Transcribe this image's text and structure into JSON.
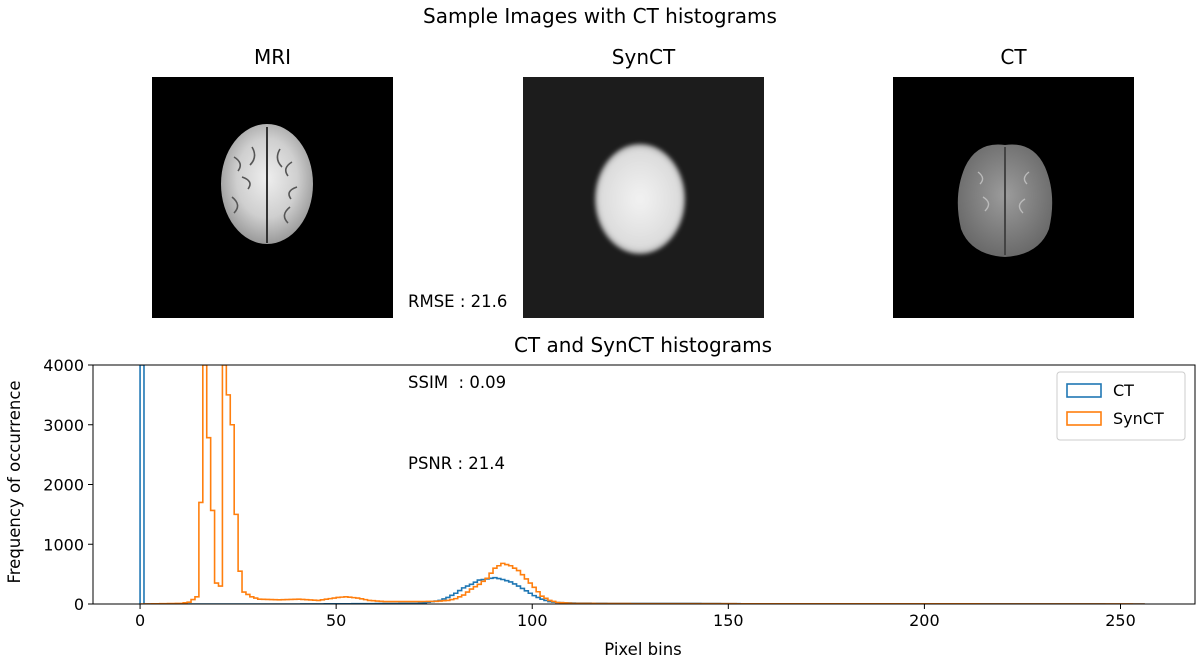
{
  "figure": {
    "title": "Sample Images with CT histograms",
    "panels": [
      {
        "title": "MRI"
      },
      {
        "title": "SynCT"
      },
      {
        "title": "CT"
      }
    ],
    "metrics": [
      "RMSE : 21.6",
      "SSIM  : 0.09",
      "PSNR : 21.4"
    ]
  },
  "chart_data": {
    "type": "histogram",
    "title": "CT and SynCT histograms",
    "xlabel": "Pixel bins",
    "ylabel": "Frequency of occurrence",
    "xlim": [
      -12,
      269
    ],
    "ylim": [
      0,
      4000
    ],
    "xticks": [
      0,
      50,
      100,
      150,
      200,
      250
    ],
    "yticks": [
      0,
      1000,
      2000,
      3000,
      4000
    ],
    "legend_position": "top-right",
    "series": [
      {
        "name": "CT",
        "color": "#1f77b4",
        "points": [
          [
            0,
            4000
          ],
          [
            1,
            0
          ],
          [
            40,
            0
          ],
          [
            70,
            10
          ],
          [
            72,
            20
          ],
          [
            74,
            40
          ],
          [
            76,
            60
          ],
          [
            78,
            110
          ],
          [
            80,
            180
          ],
          [
            82,
            270
          ],
          [
            84,
            330
          ],
          [
            86,
            400
          ],
          [
            88,
            420
          ],
          [
            90,
            440
          ],
          [
            92,
            410
          ],
          [
            94,
            370
          ],
          [
            96,
            300
          ],
          [
            98,
            220
          ],
          [
            100,
            140
          ],
          [
            102,
            80
          ],
          [
            104,
            40
          ],
          [
            106,
            25
          ],
          [
            110,
            15
          ],
          [
            120,
            10
          ],
          [
            140,
            10
          ],
          [
            150,
            5
          ],
          [
            160,
            2
          ],
          [
            256,
            0
          ]
        ]
      },
      {
        "name": "SynCT",
        "color": "#ff7f0e",
        "points": [
          [
            0,
            0
          ],
          [
            10,
            10
          ],
          [
            12,
            30
          ],
          [
            14,
            120
          ],
          [
            15,
            1700
          ],
          [
            16,
            4000
          ],
          [
            19,
            350
          ],
          [
            20,
            300
          ],
          [
            21,
            4000
          ],
          [
            23,
            3000
          ],
          [
            24,
            1500
          ],
          [
            25,
            550
          ],
          [
            26,
            200
          ],
          [
            28,
            120
          ],
          [
            30,
            80
          ],
          [
            35,
            70
          ],
          [
            40,
            80
          ],
          [
            45,
            60
          ],
          [
            48,
            90
          ],
          [
            50,
            110
          ],
          [
            52,
            120
          ],
          [
            55,
            100
          ],
          [
            58,
            60
          ],
          [
            62,
            40
          ],
          [
            70,
            40
          ],
          [
            75,
            45
          ],
          [
            78,
            60
          ],
          [
            80,
            90
          ],
          [
            82,
            150
          ],
          [
            84,
            250
          ],
          [
            86,
            330
          ],
          [
            88,
            430
          ],
          [
            90,
            600
          ],
          [
            92,
            680
          ],
          [
            94,
            640
          ],
          [
            96,
            560
          ],
          [
            98,
            420
          ],
          [
            100,
            280
          ],
          [
            102,
            130
          ],
          [
            104,
            60
          ],
          [
            106,
            25
          ],
          [
            110,
            10
          ],
          [
            130,
            5
          ],
          [
            200,
            3
          ],
          [
            256,
            0
          ]
        ]
      }
    ]
  }
}
